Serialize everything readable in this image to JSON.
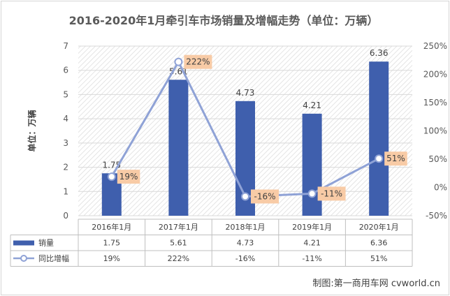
{
  "chart_data": {
    "type": "bar",
    "title": "2016-2020年1月牵引车市场销量及增幅走势（单位：万辆）",
    "ylabel": "单位：万辆",
    "categories": [
      "2016年1月",
      "2017年1月",
      "2018年1月",
      "2019年1月",
      "2020年1月"
    ],
    "series": [
      {
        "name": "销量",
        "type": "bar",
        "axis": "left",
        "color": "#3f5fad",
        "values": [
          1.75,
          5.61,
          4.73,
          4.21,
          6.36
        ],
        "labels": [
          "1.75",
          "5.61",
          "4.73",
          "4.21",
          "6.36"
        ]
      },
      {
        "name": "同比增幅",
        "type": "line",
        "axis": "right",
        "color": "#8fa2d6",
        "values": [
          19,
          222,
          -16,
          -11,
          51
        ],
        "labels": [
          "19%",
          "222%",
          "-16%",
          "-11%",
          "51%"
        ]
      }
    ],
    "ylim_left": [
      0,
      7
    ],
    "yticks_left": [
      "0",
      "1",
      "2",
      "3",
      "4",
      "5",
      "6",
      "7"
    ],
    "ylim_right": [
      -50,
      250
    ],
    "yticks_right": [
      "-50%",
      "0%",
      "50%",
      "100%",
      "150%",
      "200%",
      "250%"
    ],
    "legend": "data-table",
    "label_bg": "#f8cba6",
    "grid": true
  },
  "source_text": "制图:第一商用车网 cvworld.cn"
}
